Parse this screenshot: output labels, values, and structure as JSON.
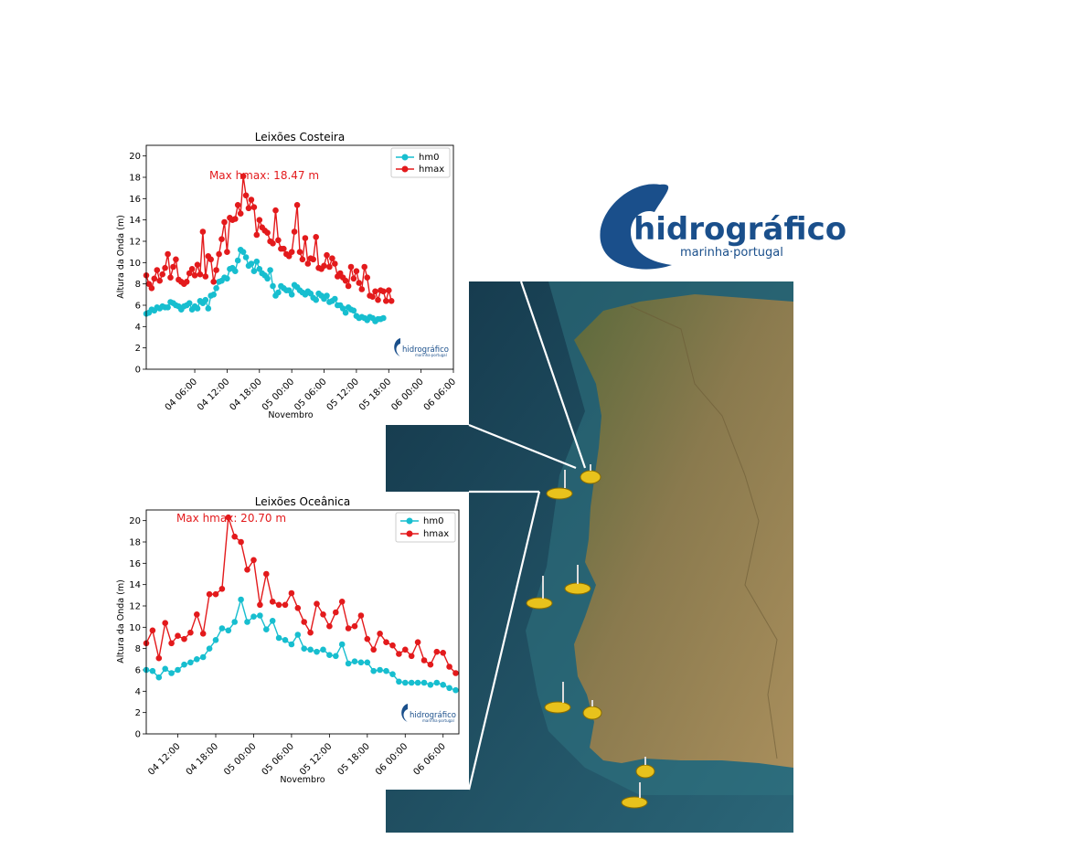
{
  "logo": {
    "main": "hidrográfico",
    "sub": "marinha·portugal"
  },
  "map": {
    "buoy_count": 8
  },
  "colors": {
    "hm0": "#17becf",
    "hmax": "#e31a1c",
    "annotation": "#e31a1c",
    "brand": "#1a4f8b"
  },
  "chart_data": [
    {
      "type": "line",
      "title": "Leixões Costeira",
      "xlabel": "Novembro",
      "ylabel": "Altura da Onda (m)",
      "ylim": [
        0,
        21
      ],
      "yticks": [
        0,
        2,
        4,
        6,
        8,
        10,
        12,
        14,
        16,
        18,
        20
      ],
      "xlim": [
        "2024-11-03 21:00",
        "2024-11-06 06:00"
      ],
      "xticks": [
        "04 06:00",
        "04 12:00",
        "04 18:00",
        "05 00:00",
        "05 06:00",
        "05 12:00",
        "05 18:00",
        "06 00:00",
        "06 06:00"
      ],
      "x_start": "2024-11-03 21:00",
      "x_step_minutes": 30,
      "legend": "top-right",
      "annotation": "Max hmax: 18.47 m",
      "watermark": {
        "main": "hidrográfico",
        "sub": "marinha·portugal"
      },
      "series": [
        {
          "name": "hm0",
          "values": [
            5.2,
            5.3,
            5.6,
            5.5,
            5.8,
            5.7,
            5.9,
            5.8,
            5.8,
            6.3,
            6.2,
            6.0,
            5.9,
            5.6,
            5.9,
            6.0,
            6.2,
            5.6,
            5.9,
            5.7,
            6.4,
            6.2,
            6.5,
            5.7,
            6.9,
            7.0,
            7.6,
            8.2,
            8.3,
            8.6,
            8.5,
            9.4,
            9.5,
            9.2,
            10.2,
            11.2,
            11.0,
            10.5,
            9.7,
            9.9,
            9.2,
            10.1,
            9.4,
            9.0,
            8.8,
            8.5,
            9.3,
            7.8,
            6.9,
            7.2,
            7.8,
            7.6,
            7.4,
            7.4,
            7.0,
            7.9,
            7.7,
            7.4,
            7.2,
            7.0,
            7.3,
            7.1,
            6.7,
            6.5,
            7.1,
            6.9,
            6.6,
            6.9,
            6.3,
            6.4,
            6.6,
            6.0,
            6.0,
            5.7,
            5.3,
            5.8,
            5.6,
            5.5,
            5.0,
            4.8,
            4.9,
            4.8,
            4.6,
            4.9,
            4.8,
            4.5,
            4.7,
            4.7,
            4.8
          ]
        },
        {
          "name": "hmax",
          "values": [
            8.8,
            8.0,
            7.6,
            8.5,
            9.3,
            8.3,
            8.9,
            9.5,
            10.8,
            8.6,
            9.6,
            10.3,
            8.4,
            8.2,
            8.0,
            8.2,
            9.0,
            9.4,
            8.8,
            9.8,
            8.9,
            12.9,
            8.7,
            10.6,
            10.3,
            8.2,
            9.3,
            10.8,
            12.2,
            13.8,
            11.0,
            14.2,
            14.0,
            14.1,
            15.4,
            14.6,
            18.1,
            16.3,
            15.1,
            15.9,
            15.2,
            12.6,
            14.0,
            13.3,
            13.0,
            12.8,
            12.0,
            11.8,
            14.9,
            12.1,
            11.3,
            11.3,
            10.8,
            10.6,
            11.0,
            12.9,
            15.4,
            11.0,
            10.3,
            12.3,
            9.9,
            10.4,
            10.3,
            12.4,
            9.5,
            9.4,
            9.7,
            10.7,
            9.6,
            10.4,
            9.9,
            8.7,
            9.0,
            8.6,
            8.3,
            7.8,
            9.6,
            8.5,
            9.2,
            8.1,
            7.5,
            9.6,
            8.6,
            6.9,
            6.8,
            7.3,
            6.5,
            7.4,
            7.3,
            6.4,
            7.4,
            6.4
          ]
        }
      ]
    },
    {
      "type": "line",
      "title": "Leixões Oceânica",
      "xlabel": "Novembro",
      "ylabel": "Altura da Onda (m)",
      "ylim": [
        0,
        21
      ],
      "yticks": [
        0,
        2,
        4,
        6,
        8,
        10,
        12,
        14,
        16,
        18,
        20
      ],
      "xlim": [
        "2024-11-04 07:00",
        "2024-11-06 08:30"
      ],
      "xticks": [
        "04 12:00",
        "04 18:00",
        "05 00:00",
        "05 06:00",
        "05 12:00",
        "05 18:00",
        "06 00:00",
        "06 06:00"
      ],
      "x_start": "2024-11-04 07:00",
      "x_step_minutes": 60,
      "legend": "top-right",
      "annotation": "Max hmax: 20.70 m",
      "watermark": {
        "main": "hidrográfico",
        "sub": "marinha·portugal"
      },
      "series": [
        {
          "name": "hm0",
          "values": [
            6.0,
            5.9,
            5.3,
            6.1,
            5.7,
            6.0,
            6.5,
            6.7,
            7.0,
            7.2,
            8.0,
            8.8,
            9.9,
            9.7,
            10.5,
            12.6,
            10.5,
            11.0,
            11.1,
            9.8,
            10.6,
            9.0,
            8.8,
            8.4,
            9.3,
            8.0,
            7.9,
            7.7,
            7.9,
            7.4,
            7.3,
            8.4,
            6.6,
            6.8,
            6.7,
            6.7,
            5.9,
            6.0,
            5.9,
            5.6,
            4.9,
            4.8,
            4.8,
            4.8,
            4.8,
            4.6,
            4.8,
            4.6,
            4.3,
            4.1
          ]
        },
        {
          "name": "hmax",
          "values": [
            8.5,
            9.7,
            7.1,
            10.4,
            8.5,
            9.2,
            8.9,
            9.5,
            11.2,
            9.4,
            13.1,
            13.1,
            13.6,
            20.3,
            18.5,
            18.0,
            15.4,
            16.3,
            12.1,
            15.0,
            12.4,
            12.1,
            12.1,
            13.2,
            11.8,
            10.5,
            9.5,
            12.2,
            11.2,
            10.1,
            11.4,
            12.4,
            9.9,
            10.1,
            11.1,
            8.9,
            7.9,
            9.4,
            8.6,
            8.3,
            7.5,
            7.9,
            7.3,
            8.6,
            6.9,
            6.5,
            7.7,
            7.6,
            6.3,
            5.7
          ]
        }
      ]
    }
  ]
}
